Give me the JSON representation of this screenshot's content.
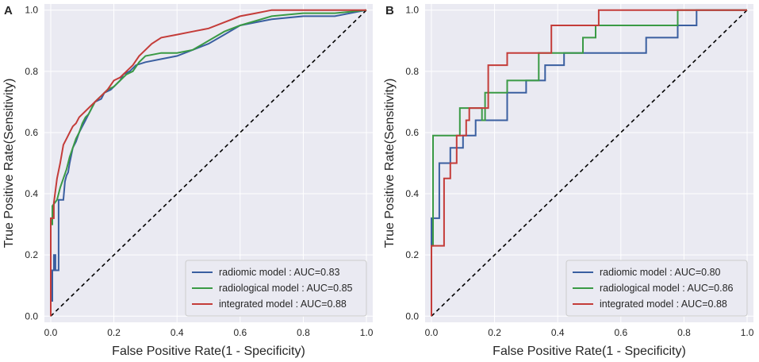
{
  "chart_data": [
    {
      "type": "line",
      "panel_label": "A",
      "xlabel": "False Positive Rate(1 - Specificity)",
      "ylabel": "True Positive Rate(Sensitivity)",
      "xlim": [
        -0.02,
        1.02
      ],
      "ylim": [
        -0.02,
        1.02
      ],
      "xticks": [
        "0.0",
        "0.2",
        "0.4",
        "0.6",
        "0.8",
        "1.0"
      ],
      "yticks": [
        "0.0",
        "0.2",
        "0.4",
        "0.6",
        "0.8",
        "1.0"
      ],
      "grid": true,
      "legend_position": "lower-right",
      "diagonal": true,
      "series": [
        {
          "name": "radiomic model : AUC=0.83",
          "color": "#3a5fa0",
          "x": [
            0,
            0,
            0.005,
            0.005,
            0.01,
            0.01,
            0.015,
            0.015,
            0.025,
            0.025,
            0.04,
            0.045,
            0.05,
            0.055,
            0.06,
            0.07,
            0.08,
            0.09,
            0.1,
            0.11,
            0.12,
            0.13,
            0.14,
            0.16,
            0.17,
            0.19,
            0.2,
            0.22,
            0.23,
            0.25,
            0.27,
            0.3,
            0.35,
            0.4,
            0.45,
            0.5,
            0.55,
            0.6,
            0.7,
            0.8,
            0.9,
            1
          ],
          "y": [
            0,
            0.05,
            0.05,
            0.15,
            0.15,
            0.2,
            0.2,
            0.15,
            0.15,
            0.38,
            0.38,
            0.44,
            0.46,
            0.47,
            0.5,
            0.55,
            0.57,
            0.6,
            0.62,
            0.64,
            0.66,
            0.68,
            0.7,
            0.71,
            0.73,
            0.74,
            0.75,
            0.77,
            0.79,
            0.8,
            0.82,
            0.83,
            0.84,
            0.85,
            0.87,
            0.89,
            0.92,
            0.95,
            0.97,
            0.98,
            0.98,
            1
          ]
        },
        {
          "name": "radiological model : AUC=0.85",
          "color": "#3a9a45",
          "x": [
            0,
            0,
            0.005,
            0.005,
            0.02,
            0.03,
            0.04,
            0.05,
            0.06,
            0.07,
            0.08,
            0.09,
            0.1,
            0.11,
            0.12,
            0.13,
            0.14,
            0.15,
            0.16,
            0.18,
            0.2,
            0.22,
            0.24,
            0.26,
            0.28,
            0.3,
            0.35,
            0.4,
            0.45,
            0.5,
            0.55,
            0.6,
            0.7,
            0.8,
            0.9,
            1
          ],
          "y": [
            0,
            0.3,
            0.3,
            0.36,
            0.38,
            0.42,
            0.45,
            0.48,
            0.52,
            0.55,
            0.58,
            0.6,
            0.63,
            0.65,
            0.66,
            0.68,
            0.7,
            0.71,
            0.72,
            0.74,
            0.75,
            0.77,
            0.79,
            0.8,
            0.83,
            0.85,
            0.86,
            0.86,
            0.87,
            0.9,
            0.93,
            0.95,
            0.98,
            0.99,
            0.99,
            1
          ]
        },
        {
          "name": "integrated model : AUC=0.88",
          "color": "#c43c39",
          "x": [
            0,
            0,
            0.01,
            0.01,
            0.02,
            0.03,
            0.04,
            0.05,
            0.06,
            0.07,
            0.08,
            0.09,
            0.1,
            0.12,
            0.14,
            0.16,
            0.18,
            0.2,
            0.22,
            0.24,
            0.26,
            0.28,
            0.3,
            0.32,
            0.35,
            0.4,
            0.45,
            0.5,
            0.55,
            0.6,
            0.65,
            0.7,
            0.8,
            0.9,
            1
          ],
          "y": [
            0,
            0.32,
            0.32,
            0.37,
            0.45,
            0.5,
            0.56,
            0.58,
            0.6,
            0.62,
            0.63,
            0.65,
            0.66,
            0.68,
            0.7,
            0.72,
            0.74,
            0.77,
            0.78,
            0.8,
            0.82,
            0.85,
            0.87,
            0.89,
            0.91,
            0.92,
            0.93,
            0.94,
            0.96,
            0.98,
            0.99,
            1,
            1,
            1,
            1
          ]
        }
      ]
    },
    {
      "type": "line",
      "panel_label": "B",
      "xlabel": "False Positive Rate(1 - Specificity)",
      "ylabel": "True Positive Rate(Sensitivity)",
      "xlim": [
        -0.02,
        1.02
      ],
      "ylim": [
        -0.02,
        1.02
      ],
      "xticks": [
        "0.0",
        "0.2",
        "0.4",
        "0.6",
        "0.8",
        "1.0"
      ],
      "yticks": [
        "0.0",
        "0.2",
        "0.4",
        "0.6",
        "0.8",
        "1.0"
      ],
      "grid": true,
      "legend_position": "lower-right",
      "diagonal": true,
      "series": [
        {
          "name": "radiomic model : AUC=0.80",
          "color": "#3a5fa0",
          "x": [
            0,
            0,
            0.025,
            0.025,
            0.06,
            0.06,
            0.1,
            0.1,
            0.14,
            0.14,
            0.24,
            0.24,
            0.3,
            0.3,
            0.36,
            0.36,
            0.42,
            0.42,
            0.5,
            0.5,
            0.68,
            0.68,
            0.78,
            0.78,
            0.84,
            0.84,
            1
          ],
          "y": [
            0,
            0.32,
            0.32,
            0.5,
            0.5,
            0.55,
            0.55,
            0.59,
            0.59,
            0.64,
            0.64,
            0.73,
            0.73,
            0.77,
            0.77,
            0.82,
            0.82,
            0.86,
            0.86,
            0.86,
            0.86,
            0.91,
            0.91,
            0.95,
            0.95,
            1,
            1
          ]
        },
        {
          "name": "radiological model : AUC=0.86",
          "color": "#3a9a45",
          "x": [
            0,
            0,
            0.005,
            0.005,
            0.09,
            0.09,
            0.16,
            0.16,
            0.17,
            0.17,
            0.24,
            0.24,
            0.34,
            0.34,
            0.45,
            0.45,
            0.48,
            0.48,
            0.52,
            0.52,
            0.78,
            0.78,
            1
          ],
          "y": [
            0,
            0.23,
            0.23,
            0.59,
            0.59,
            0.68,
            0.68,
            0.64,
            0.64,
            0.73,
            0.73,
            0.77,
            0.77,
            0.86,
            0.86,
            0.86,
            0.86,
            0.91,
            0.91,
            0.95,
            0.95,
            1,
            1
          ]
        },
        {
          "name": "integrated model : AUC=0.88",
          "color": "#c43c39",
          "x": [
            0,
            0,
            0.04,
            0.04,
            0.06,
            0.06,
            0.08,
            0.08,
            0.11,
            0.11,
            0.12,
            0.12,
            0.18,
            0.18,
            0.24,
            0.24,
            0.34,
            0.34,
            0.38,
            0.38,
            0.53,
            0.53,
            1
          ],
          "y": [
            0,
            0.23,
            0.23,
            0.45,
            0.45,
            0.5,
            0.5,
            0.59,
            0.59,
            0.64,
            0.64,
            0.68,
            0.68,
            0.82,
            0.82,
            0.86,
            0.86,
            0.86,
            0.86,
            0.95,
            0.95,
            1,
            1
          ]
        }
      ]
    }
  ]
}
